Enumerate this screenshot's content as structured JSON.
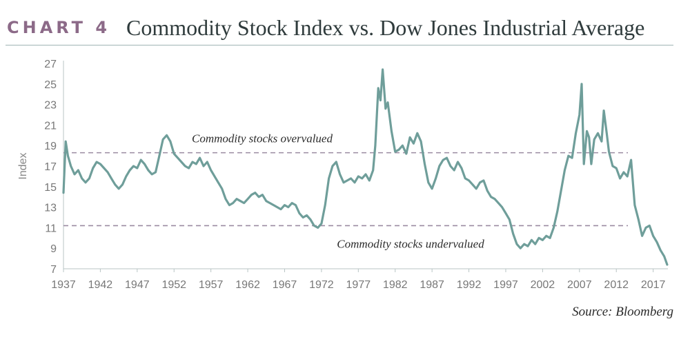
{
  "header": {
    "label": "CHART 4",
    "title": "Commodity Stock Index vs. Dow Jones Industrial Average"
  },
  "source": "Source: Bloomberg",
  "chart_data": {
    "type": "line",
    "title": "Commodity Stock Index vs. Dow Jones Industrial Average",
    "xlabel": "",
    "ylabel": "Index",
    "xlim": [
      1937,
      2019
    ],
    "ylim": [
      7,
      27
    ],
    "xticks": [
      "1937",
      "1942",
      "1947",
      "1952",
      "1957",
      "1962",
      "1967",
      "1972",
      "1977",
      "1982",
      "1987",
      "1992",
      "1997",
      "2002",
      "2007",
      "2012",
      "2017"
    ],
    "yticks": [
      "7",
      "9",
      "11",
      "13",
      "15",
      "17",
      "19",
      "21",
      "23",
      "25",
      "27"
    ],
    "grid": false,
    "line_color": "#6f9e9a",
    "reference_lines": [
      {
        "y": 18.3,
        "label": "Commodity stocks overvalued",
        "color": "#9a8aa0"
      },
      {
        "y": 11.2,
        "label": "Commodity stocks undervalued",
        "color": "#9a8aa0"
      }
    ],
    "series": [
      {
        "x": [
          1937,
          1937.3,
          1937.6,
          1938,
          1938.5,
          1939,
          1939.5,
          1940,
          1940.5,
          1941,
          1941.5,
          1942,
          1942.5,
          1943,
          1943.5,
          1944,
          1944.5,
          1945,
          1945.5,
          1946,
          1946.5,
          1947,
          1947.5,
          1948,
          1948.5,
          1949,
          1949.5,
          1950,
          1950.5,
          1951,
          1951.5,
          1952,
          1952.5,
          1953,
          1953.5,
          1954,
          1954.5,
          1955,
          1955.5,
          1956,
          1956.5,
          1957,
          1957.5,
          1958,
          1958.5,
          1959,
          1959.5,
          1960,
          1960.5,
          1961,
          1961.5,
          1962,
          1962.5,
          1963,
          1963.5,
          1964,
          1964.5,
          1965,
          1965.5,
          1966,
          1966.5,
          1967,
          1967.5,
          1968,
          1968.5,
          1969,
          1969.5,
          1970,
          1970.5,
          1971,
          1971.5,
          1972,
          1972.5,
          1973,
          1973.5,
          1974,
          1974.5,
          1975,
          1975.5,
          1976,
          1976.5,
          1977,
          1977.5,
          1978,
          1978.5,
          1979,
          1979.3,
          1979.7,
          1980,
          1980.3,
          1980.7,
          1981,
          1981.5,
          1982,
          1982.5,
          1983,
          1983.5,
          1984,
          1984.5,
          1985,
          1985.5,
          1986,
          1986.5,
          1987,
          1987.5,
          1988,
          1988.5,
          1989,
          1989.5,
          1990,
          1990.5,
          1991,
          1991.5,
          1992,
          1992.5,
          1993,
          1993.5,
          1994,
          1994.5,
          1995,
          1995.5,
          1996,
          1996.5,
          1997,
          1997.5,
          1998,
          1998.5,
          1999,
          1999.5,
          2000,
          2000.5,
          2001,
          2001.5,
          2002,
          2002.5,
          2003,
          2003.5,
          2004,
          2004.5,
          2005,
          2005.5,
          2006,
          2006.5,
          2007,
          2007.3,
          2007.6,
          2008,
          2008.3,
          2008.6,
          2009,
          2009.5,
          2010,
          2010.3,
          2010.7,
          2011,
          2011.5,
          2012,
          2012.5,
          2013,
          2013.5,
          2014,
          2014.5,
          2015,
          2015.5,
          2016,
          2016.5,
          2017,
          2017.5,
          2018,
          2018.5,
          2018.9
        ],
        "y": [
          14.4,
          19.4,
          18.0,
          17.0,
          16.2,
          16.6,
          15.8,
          15.4,
          15.8,
          16.8,
          17.4,
          17.2,
          16.8,
          16.4,
          15.8,
          15.2,
          14.8,
          15.2,
          16.0,
          16.6,
          17.0,
          16.8,
          17.6,
          17.2,
          16.6,
          16.2,
          16.4,
          18.0,
          19.6,
          20.0,
          19.4,
          18.2,
          17.8,
          17.4,
          17.0,
          16.8,
          17.4,
          17.2,
          17.8,
          17.0,
          17.4,
          16.6,
          16.0,
          15.4,
          14.8,
          13.8,
          13.2,
          13.4,
          13.8,
          13.6,
          13.4,
          13.8,
          14.2,
          14.4,
          14.0,
          14.2,
          13.6,
          13.4,
          13.2,
          13.0,
          12.8,
          13.2,
          13.0,
          13.4,
          13.2,
          12.4,
          12.0,
          12.2,
          11.8,
          11.2,
          11.0,
          11.4,
          13.2,
          15.8,
          17.0,
          17.4,
          16.2,
          15.4,
          15.6,
          15.8,
          15.4,
          16.0,
          15.8,
          16.2,
          15.6,
          16.6,
          19.0,
          24.6,
          23.4,
          26.4,
          22.6,
          23.2,
          20.4,
          18.4,
          18.6,
          19.0,
          18.2,
          19.8,
          19.2,
          20.2,
          19.4,
          17.2,
          15.4,
          14.8,
          15.8,
          17.0,
          17.6,
          17.8,
          17.0,
          16.6,
          17.4,
          16.8,
          15.8,
          15.6,
          15.2,
          14.8,
          15.4,
          15.6,
          14.6,
          14.0,
          13.8,
          13.4,
          13.0,
          12.4,
          11.8,
          10.4,
          9.4,
          9.0,
          9.4,
          9.2,
          9.8,
          9.4,
          10.0,
          9.8,
          10.2,
          10.0,
          11.0,
          12.6,
          14.6,
          16.6,
          18.0,
          17.8,
          20.2,
          22.0,
          25.0,
          17.2,
          20.4,
          19.8,
          17.2,
          19.6,
          20.2,
          19.4,
          22.4,
          20.2,
          18.4,
          17.0,
          16.8,
          15.8,
          16.4,
          16.0,
          17.6,
          13.2,
          11.8,
          10.2,
          11.0,
          11.2,
          10.2,
          9.6,
          8.8,
          8.2,
          7.4
        ]
      }
    ]
  }
}
